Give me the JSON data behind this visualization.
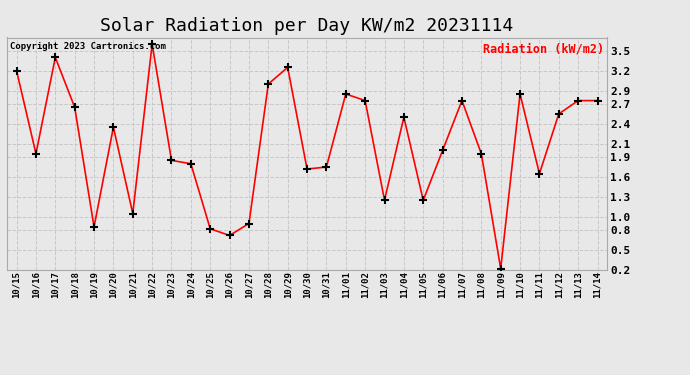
{
  "title": "Solar Radiation per Day KW/m2 20231114",
  "legend_label": "Radiation (kW/m2)",
  "copyright": "Copyright 2023 Cartronics.com",
  "dates": [
    "10/15",
    "10/16",
    "10/17",
    "10/18",
    "10/19",
    "10/20",
    "10/21",
    "10/22",
    "10/23",
    "10/24",
    "10/25",
    "10/26",
    "10/27",
    "10/28",
    "10/29",
    "10/30",
    "10/31",
    "11/01",
    "11/02",
    "11/03",
    "11/04",
    "11/05",
    "11/06",
    "11/07",
    "11/08",
    "11/09",
    "11/10",
    "11/11",
    "11/12",
    "11/13",
    "11/14"
  ],
  "values": [
    3.2,
    1.95,
    3.4,
    2.65,
    0.85,
    2.35,
    1.05,
    3.6,
    1.85,
    1.8,
    0.82,
    0.72,
    0.9,
    3.0,
    3.25,
    1.72,
    1.75,
    2.85,
    2.75,
    1.25,
    2.5,
    1.25,
    2.0,
    2.75,
    1.95,
    0.22,
    2.85,
    1.65,
    2.55,
    2.75,
    2.75
  ],
  "ylim": [
    0.2,
    3.7
  ],
  "yticks": [
    0.2,
    0.5,
    0.8,
    1.0,
    1.3,
    1.6,
    1.9,
    2.1,
    2.4,
    2.7,
    2.9,
    3.2,
    3.5
  ],
  "line_color": "red",
  "marker_color": "black",
  "grid_color": "#c8c8c8",
  "bg_color": "#e8e8e8",
  "title_fontsize": 13,
  "legend_color": "red",
  "copyright_color": "black",
  "axis_label_color": "black"
}
